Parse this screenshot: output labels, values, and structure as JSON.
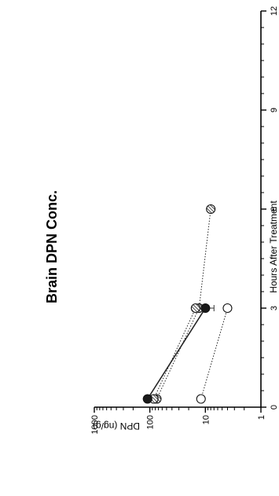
{
  "chart_data": {
    "type": "line",
    "title": "Brain DPN Conc.",
    "xlabel": "Hours After Treatment",
    "ylabel": "DPN (ng/g)",
    "x_ticks": [
      0,
      3,
      6,
      9,
      12
    ],
    "x_tick_labels": [
      "0",
      "3",
      "6",
      "9",
      "12"
    ],
    "xlim": [
      0,
      12
    ],
    "y_scale": "log",
    "y_ticks": [
      1,
      10,
      100,
      1000
    ],
    "y_tick_labels": [
      "1",
      "10",
      "100",
      "1000"
    ],
    "ylim": [
      1,
      1000
    ],
    "grid": false,
    "orientation": "rotated 90° counter-clockwise",
    "series": [
      {
        "marker": "filled-circle",
        "style": "solid",
        "points": [
          {
            "x": 0.25,
            "y": 110
          },
          {
            "x": 3,
            "y": 10,
            "err": 3
          }
        ]
      },
      {
        "marker": "hatched-circle",
        "style": "dotted",
        "points": [
          {
            "x": 0.25,
            "y": 75
          },
          {
            "x": 3,
            "y": 13
          },
          {
            "x": 6,
            "y": 8
          }
        ]
      },
      {
        "marker": "hatched-circle",
        "style": "dotted",
        "points": [
          {
            "x": 0.25,
            "y": 85
          },
          {
            "x": 3,
            "y": 15
          }
        ]
      },
      {
        "marker": "open-circle",
        "style": "dotted",
        "points": [
          {
            "x": 0.25,
            "y": 12
          },
          {
            "x": 3,
            "y": 4
          }
        ]
      }
    ]
  }
}
